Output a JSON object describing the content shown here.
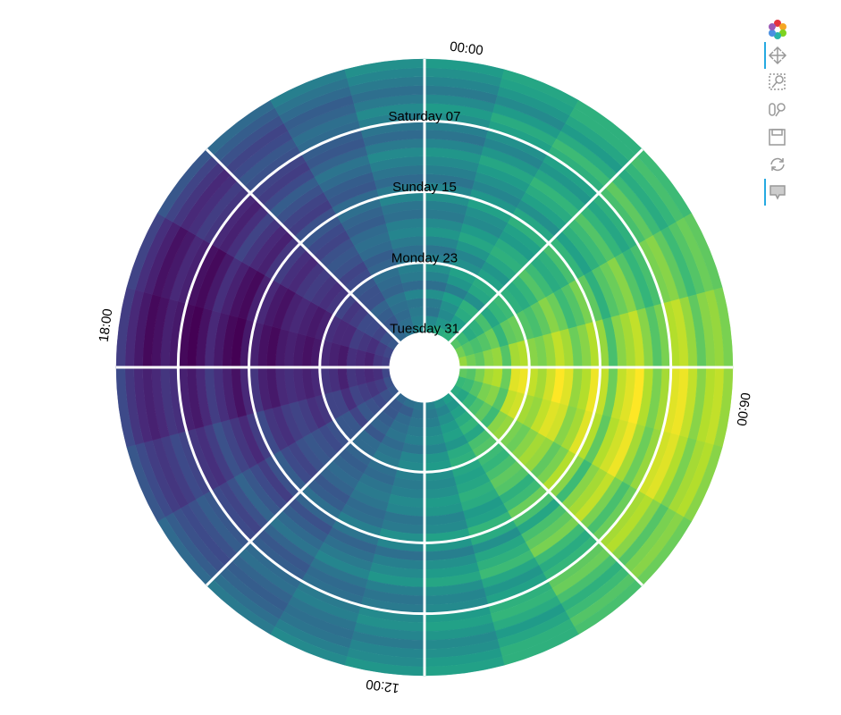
{
  "chart_data": {
    "type": "radial_heatmap",
    "angular_categories": [
      "00:00",
      null,
      null,
      null,
      null,
      null,
      "06:00",
      null,
      null,
      null,
      null,
      null,
      "12:00",
      null,
      null,
      null,
      null,
      null,
      "18:00",
      null,
      null,
      null,
      null,
      null
    ],
    "radial_categories": [
      "Tuesday 31",
      null,
      null,
      null,
      null,
      null,
      null,
      null,
      "Monday 23",
      null,
      null,
      null,
      null,
      null,
      null,
      null,
      "Sunday 15",
      null,
      null,
      null,
      null,
      null,
      null,
      null,
      "Saturday 07",
      null,
      null,
      null,
      null,
      null,
      null
    ],
    "values": [
      [
        55,
        60,
        62,
        70,
        75,
        80,
        72,
        65,
        60,
        55,
        50,
        45,
        40,
        38,
        35,
        30,
        28,
        25,
        22,
        25,
        30,
        35,
        40,
        48
      ],
      [
        48,
        52,
        58,
        66,
        70,
        75,
        70,
        66,
        58,
        52,
        46,
        42,
        38,
        32,
        30,
        28,
        22,
        18,
        20,
        22,
        28,
        34,
        38,
        44
      ],
      [
        40,
        48,
        55,
        60,
        68,
        72,
        76,
        70,
        64,
        56,
        50,
        44,
        40,
        36,
        30,
        26,
        20,
        16,
        14,
        18,
        24,
        30,
        36,
        42
      ],
      [
        42,
        50,
        60,
        62,
        70,
        78,
        82,
        76,
        68,
        60,
        54,
        48,
        42,
        38,
        32,
        28,
        22,
        18,
        16,
        20,
        26,
        32,
        38,
        40
      ],
      [
        50,
        55,
        62,
        68,
        74,
        80,
        84,
        78,
        72,
        64,
        56,
        50,
        44,
        40,
        34,
        30,
        24,
        20,
        18,
        22,
        26,
        34,
        40,
        46
      ],
      [
        38,
        44,
        50,
        58,
        64,
        70,
        74,
        70,
        66,
        58,
        52,
        46,
        40,
        36,
        30,
        24,
        18,
        14,
        12,
        16,
        22,
        28,
        34,
        36
      ],
      [
        45,
        52,
        58,
        64,
        72,
        82,
        90,
        86,
        78,
        68,
        60,
        52,
        46,
        40,
        36,
        30,
        24,
        18,
        14,
        16,
        20,
        28,
        36,
        42
      ],
      [
        50,
        56,
        60,
        66,
        74,
        84,
        92,
        88,
        80,
        70,
        62,
        54,
        48,
        42,
        36,
        30,
        24,
        20,
        16,
        18,
        24,
        30,
        38,
        44
      ],
      [
        44,
        50,
        56,
        62,
        70,
        78,
        86,
        82,
        76,
        66,
        58,
        50,
        44,
        38,
        34,
        28,
        20,
        16,
        12,
        14,
        20,
        26,
        34,
        40
      ],
      [
        40,
        46,
        52,
        60,
        68,
        76,
        82,
        80,
        74,
        64,
        56,
        48,
        42,
        36,
        32,
        26,
        18,
        14,
        10,
        12,
        18,
        24,
        32,
        38
      ],
      [
        46,
        52,
        58,
        64,
        72,
        80,
        88,
        86,
        78,
        68,
        58,
        50,
        44,
        40,
        34,
        28,
        22,
        16,
        12,
        14,
        20,
        28,
        36,
        42
      ],
      [
        52,
        58,
        62,
        70,
        78,
        86,
        94,
        90,
        82,
        72,
        62,
        54,
        48,
        42,
        36,
        30,
        24,
        18,
        14,
        16,
        22,
        30,
        38,
        46
      ],
      [
        48,
        54,
        60,
        66,
        74,
        82,
        90,
        88,
        80,
        70,
        60,
        52,
        46,
        40,
        34,
        28,
        22,
        16,
        12,
        14,
        20,
        28,
        36,
        44
      ],
      [
        42,
        48,
        54,
        60,
        66,
        74,
        80,
        78,
        72,
        62,
        54,
        46,
        40,
        36,
        30,
        24,
        18,
        12,
        8,
        10,
        16,
        24,
        32,
        38
      ],
      [
        44,
        50,
        56,
        62,
        70,
        78,
        84,
        82,
        76,
        66,
        56,
        48,
        42,
        38,
        32,
        26,
        20,
        14,
        10,
        12,
        18,
        26,
        34,
        40
      ],
      [
        50,
        56,
        62,
        68,
        76,
        84,
        92,
        90,
        84,
        74,
        64,
        56,
        50,
        44,
        38,
        32,
        26,
        20,
        14,
        16,
        22,
        30,
        38,
        46
      ],
      [
        46,
        52,
        58,
        64,
        72,
        80,
        86,
        84,
        78,
        68,
        60,
        52,
        46,
        40,
        34,
        28,
        22,
        16,
        12,
        14,
        20,
        28,
        36,
        42
      ],
      [
        40,
        46,
        50,
        56,
        62,
        68,
        74,
        72,
        66,
        58,
        50,
        44,
        38,
        34,
        28,
        22,
        16,
        10,
        6,
        8,
        14,
        22,
        30,
        36
      ],
      [
        44,
        50,
        56,
        62,
        70,
        78,
        86,
        84,
        78,
        68,
        58,
        50,
        44,
        38,
        32,
        26,
        20,
        14,
        8,
        10,
        16,
        24,
        32,
        40
      ],
      [
        48,
        54,
        60,
        66,
        74,
        82,
        90,
        88,
        82,
        72,
        62,
        54,
        48,
        42,
        36,
        30,
        24,
        18,
        12,
        14,
        20,
        28,
        36,
        44
      ],
      [
        52,
        58,
        64,
        70,
        78,
        86,
        94,
        92,
        86,
        76,
        66,
        58,
        52,
        46,
        40,
        34,
        28,
        22,
        16,
        18,
        24,
        32,
        40,
        48
      ],
      [
        46,
        52,
        58,
        64,
        70,
        78,
        84,
        82,
        76,
        66,
        58,
        50,
        44,
        40,
        34,
        28,
        22,
        16,
        10,
        12,
        18,
        26,
        34,
        42
      ],
      [
        40,
        46,
        52,
        58,
        64,
        70,
        76,
        74,
        68,
        60,
        52,
        46,
        40,
        36,
        30,
        24,
        18,
        12,
        6,
        8,
        14,
        22,
        30,
        36
      ],
      [
        44,
        50,
        56,
        62,
        68,
        76,
        82,
        80,
        74,
        64,
        56,
        48,
        42,
        38,
        32,
        26,
        20,
        14,
        8,
        10,
        16,
        24,
        32,
        40
      ],
      [
        50,
        56,
        62,
        68,
        76,
        84,
        90,
        88,
        82,
        72,
        62,
        54,
        48,
        42,
        36,
        30,
        24,
        18,
        12,
        14,
        20,
        28,
        36,
        44
      ],
      [
        54,
        60,
        66,
        72,
        78,
        86,
        92,
        90,
        84,
        74,
        64,
        56,
        50,
        44,
        38,
        32,
        26,
        20,
        14,
        16,
        22,
        30,
        38,
        48
      ],
      [
        48,
        54,
        60,
        66,
        72,
        80,
        86,
        84,
        78,
        68,
        60,
        52,
        46,
        40,
        34,
        28,
        22,
        16,
        10,
        12,
        18,
        26,
        34,
        42
      ],
      [
        42,
        48,
        54,
        60,
        66,
        72,
        78,
        76,
        70,
        62,
        54,
        48,
        42,
        38,
        32,
        26,
        20,
        14,
        8,
        10,
        16,
        24,
        32,
        38
      ],
      [
        46,
        52,
        58,
        64,
        70,
        78,
        84,
        82,
        76,
        66,
        58,
        50,
        46,
        40,
        34,
        28,
        22,
        16,
        12,
        14,
        20,
        28,
        36,
        42
      ],
      [
        50,
        56,
        62,
        68,
        74,
        80,
        86,
        84,
        78,
        70,
        62,
        54,
        48,
        44,
        38,
        32,
        26,
        20,
        16,
        18,
        24,
        32,
        40,
        46
      ],
      [
        54,
        58,
        62,
        66,
        72,
        76,
        80,
        78,
        74,
        68,
        62,
        56,
        52,
        48,
        42,
        36,
        30,
        26,
        22,
        24,
        30,
        36,
        44,
        50
      ]
    ],
    "colormap": [
      "#440154",
      "#482878",
      "#3e4989",
      "#31688e",
      "#26828e",
      "#1f9e89",
      "#35b779",
      "#6ece58",
      "#b5de2b",
      "#fde725"
    ]
  }
}
